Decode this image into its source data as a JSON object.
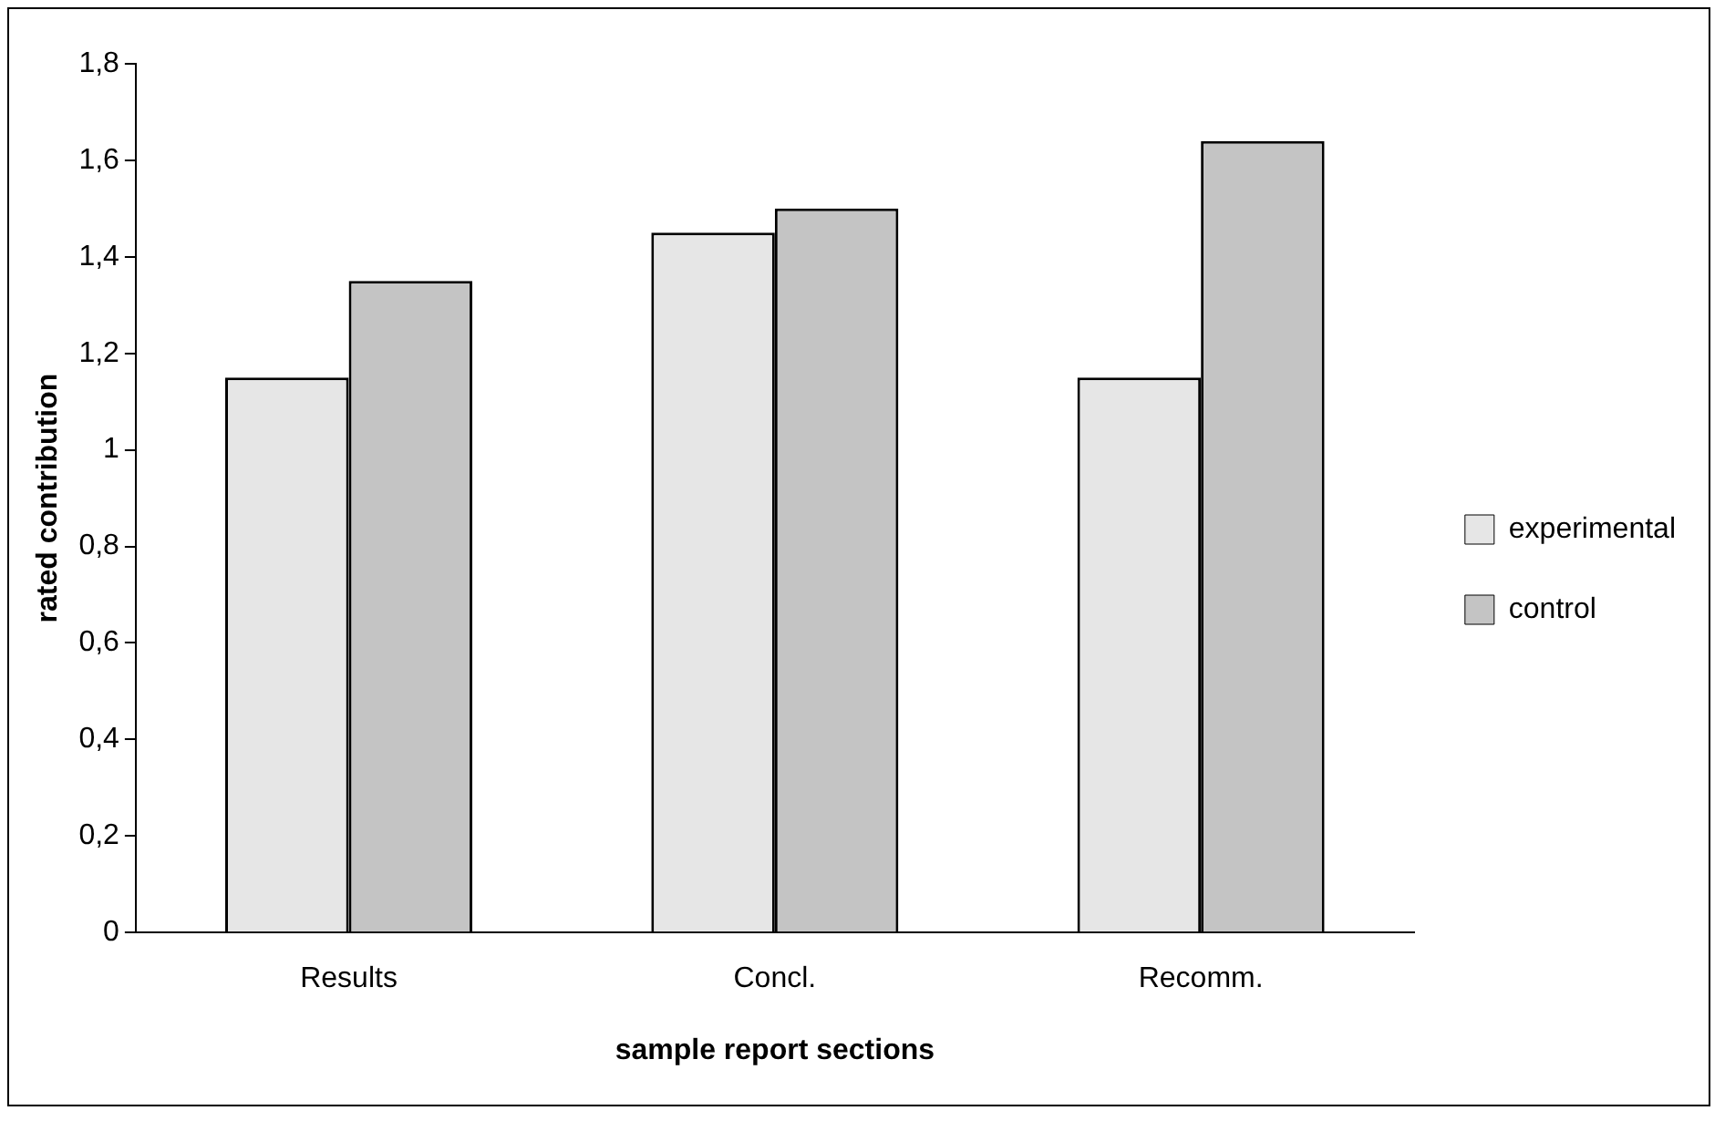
{
  "chart_data": {
    "type": "bar",
    "xlabel": "sample report sections",
    "ylabel": "rated contribution",
    "categories": [
      "Results",
      "Concl.",
      "Recomm."
    ],
    "series": [
      {
        "name": "experimental",
        "color": "#e6e6e6",
        "values": [
          1.15,
          1.45,
          1.15
        ]
      },
      {
        "name": "control",
        "color": "#c4c4c4",
        "values": [
          1.35,
          1.5,
          1.64
        ]
      }
    ],
    "ylim": [
      0,
      1.8
    ],
    "yticks": [
      0,
      {
        "value": 0.2,
        "label": "0,2"
      },
      {
        "value": 0.4,
        "label": "0,4"
      },
      {
        "value": 0.6,
        "label": "0,6"
      },
      {
        "value": 0.8,
        "label": "0,8"
      },
      1,
      {
        "value": 1.2,
        "label": "1,2"
      },
      {
        "value": 1.4,
        "label": "1,4"
      },
      {
        "value": 1.6,
        "label": "1,6"
      },
      {
        "value": 1.8,
        "label": "1,8"
      }
    ],
    "grid": false,
    "legend": "right"
  }
}
